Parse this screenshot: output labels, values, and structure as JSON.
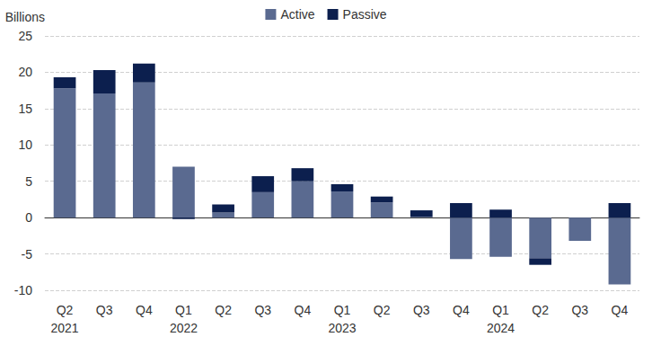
{
  "chart_data": {
    "type": "bar",
    "stacked": true,
    "ylabel": "Billions",
    "categories": [
      "Q2\n2021",
      "Q3",
      "Q4",
      "Q1\n2022",
      "Q2",
      "Q3",
      "Q4",
      "Q1\n2023",
      "Q2",
      "Q3",
      "Q4",
      "Q1\n2024",
      "Q2",
      "Q3",
      "Q4"
    ],
    "series": [
      {
        "name": "Active",
        "color": "#5a6a90",
        "values": [
          17.8,
          17.1,
          18.6,
          7.0,
          0.7,
          3.5,
          5.0,
          3.6,
          2.1,
          0.1,
          -5.7,
          -5.4,
          -5.6,
          -3.2,
          -9.2
        ]
      },
      {
        "name": "Passive",
        "color": "#0c1f4e",
        "values": [
          1.5,
          3.2,
          2.6,
          -0.2,
          1.1,
          2.2,
          1.8,
          1.0,
          0.8,
          0.9,
          2.0,
          1.1,
          -0.9,
          0.0,
          2.0
        ]
      }
    ],
    "ylim": [
      -10,
      25
    ],
    "yticks": [
      -10,
      -5,
      0,
      5,
      10,
      15,
      20,
      25
    ],
    "grid": true,
    "legend": "top"
  }
}
